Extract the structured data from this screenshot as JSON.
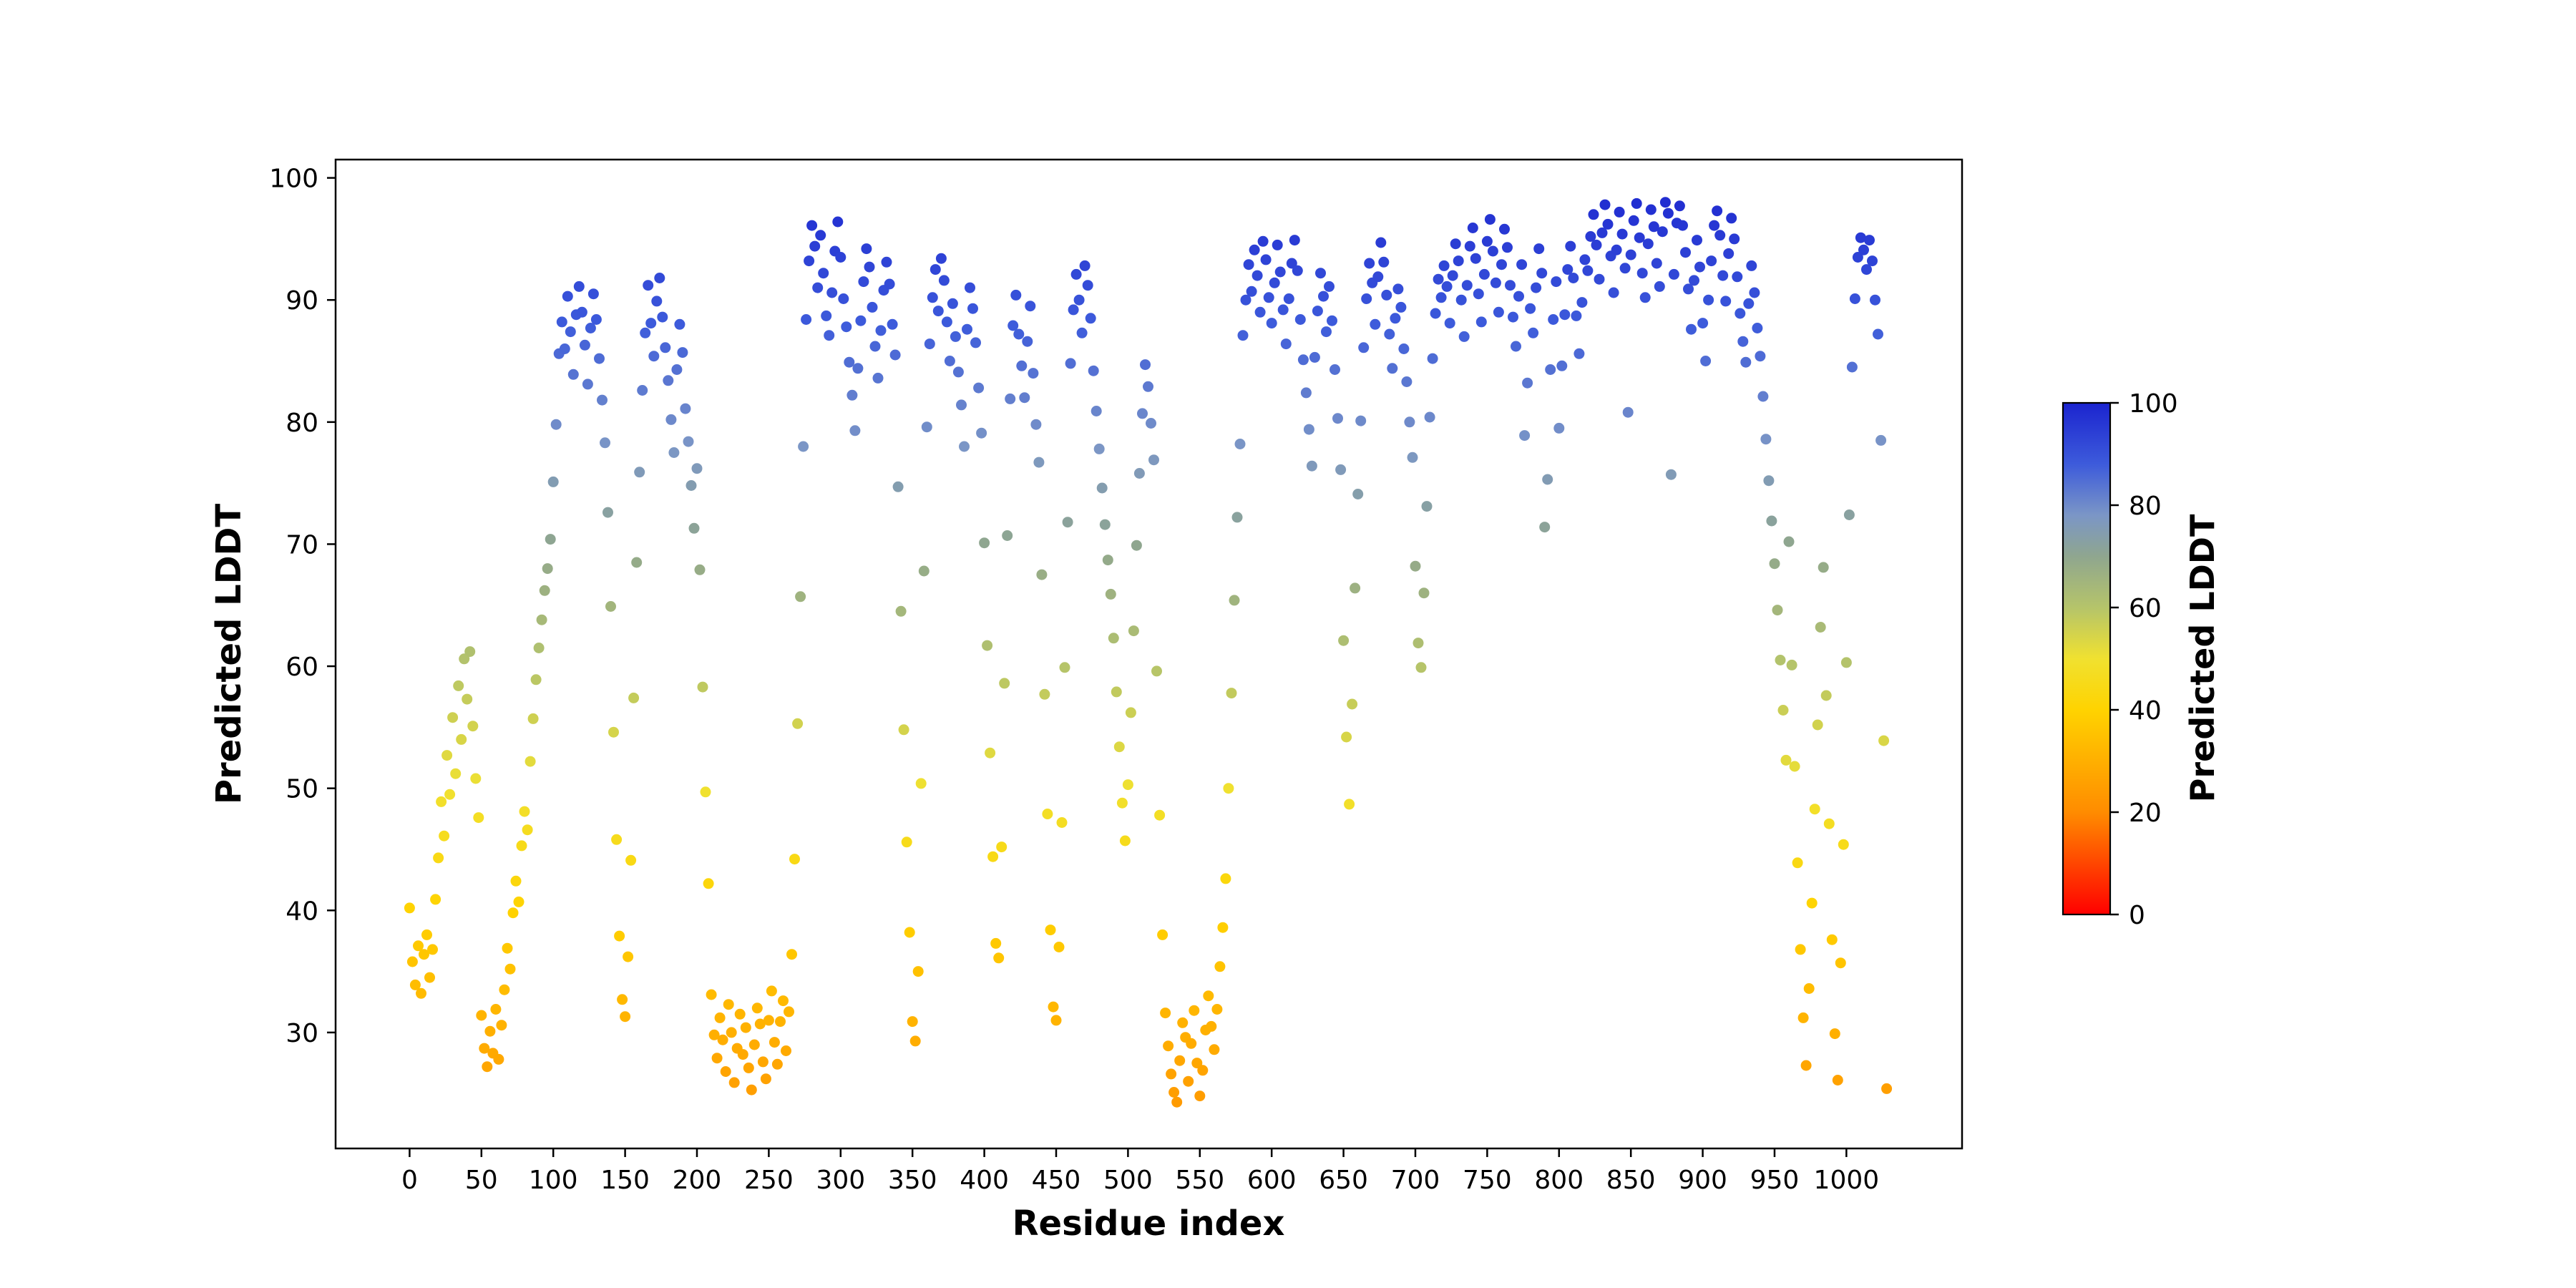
{
  "chart_data": {
    "type": "scatter",
    "title": "",
    "xlabel": "Residue index",
    "ylabel": "Predicted LDDT",
    "xlim": [
      -51.5,
      1080.5
    ],
    "ylim": [
      20.5,
      101.5
    ],
    "xticks": [
      0,
      50,
      100,
      150,
      200,
      250,
      300,
      350,
      400,
      450,
      500,
      550,
      600,
      650,
      700,
      750,
      800,
      850,
      900,
      950,
      1000
    ],
    "yticks": [
      30,
      40,
      50,
      60,
      70,
      80,
      90,
      100
    ],
    "grid": false,
    "marker_radius_px": 7.5,
    "x_start": 0,
    "x_step": 2,
    "colorbar": {
      "label": "Predicted LDDT",
      "ticks": [
        0,
        20,
        40,
        60,
        80,
        100
      ],
      "min": 0,
      "max": 100
    },
    "colormap_stops": [
      [
        0,
        "#ff0000"
      ],
      [
        20,
        "#ff8c00"
      ],
      [
        40,
        "#ffd300"
      ],
      [
        50,
        "#f0e130"
      ],
      [
        60,
        "#b5c46a"
      ],
      [
        70,
        "#8fa68f"
      ],
      [
        78,
        "#7b96c6"
      ],
      [
        88,
        "#3d5bdb"
      ],
      [
        100,
        "#1b24cf"
      ]
    ],
    "values": [
      40.2,
      35.8,
      33.9,
      37.1,
      33.2,
      36.4,
      38.0,
      34.5,
      36.8,
      40.9,
      44.3,
      48.9,
      46.1,
      52.7,
      49.5,
      55.8,
      51.2,
      58.4,
      54.0,
      60.6,
      57.3,
      61.2,
      55.1,
      50.8,
      47.6,
      31.4,
      28.7,
      27.2,
      30.1,
      28.3,
      31.9,
      27.8,
      30.6,
      33.5,
      36.9,
      35.2,
      39.8,
      42.4,
      40.7,
      45.3,
      48.1,
      46.6,
      52.2,
      55.7,
      58.9,
      61.5,
      63.8,
      66.2,
      68.0,
      70.4,
      75.1,
      79.8,
      85.6,
      88.2,
      86.0,
      90.3,
      87.4,
      83.9,
      88.8,
      91.1,
      89.0,
      86.3,
      83.1,
      87.7,
      90.5,
      88.4,
      85.2,
      81.8,
      78.3,
      72.6,
      64.9,
      54.6,
      45.8,
      37.9,
      32.7,
      31.3,
      36.2,
      44.1,
      57.4,
      68.5,
      75.9,
      82.6,
      87.3,
      91.2,
      88.1,
      85.4,
      89.9,
      91.8,
      88.6,
      86.1,
      83.4,
      80.2,
      77.5,
      84.3,
      88.0,
      85.7,
      81.1,
      78.4,
      74.8,
      71.3,
      76.2,
      67.9,
      58.3,
      49.7,
      42.2,
      33.1,
      29.8,
      27.9,
      31.2,
      29.4,
      26.8,
      32.3,
      30.0,
      25.9,
      28.7,
      31.5,
      28.2,
      30.4,
      27.1,
      25.3,
      29.0,
      32.0,
      30.7,
      27.6,
      26.2,
      31.0,
      33.4,
      29.2,
      27.4,
      30.9,
      32.6,
      28.5,
      31.7,
      36.4,
      44.2,
      55.3,
      65.7,
      78.0,
      88.4,
      93.2,
      96.1,
      94.4,
      91.0,
      95.3,
      92.2,
      88.7,
      87.1,
      90.6,
      94.0,
      96.4,
      93.5,
      90.1,
      87.8,
      84.9,
      82.2,
      79.3,
      84.4,
      88.3,
      91.5,
      94.2,
      92.7,
      89.4,
      86.2,
      83.6,
      87.5,
      90.8,
      93.1,
      91.3,
      88.0,
      85.5,
      74.7,
      64.5,
      54.8,
      45.6,
      38.2,
      30.9,
      29.3,
      35.0,
      50.4,
      67.8,
      79.6,
      86.4,
      90.2,
      92.5,
      89.1,
      93.4,
      91.6,
      88.2,
      85.0,
      89.7,
      87.0,
      84.1,
      81.4,
      78.0,
      87.6,
      91.0,
      89.3,
      86.5,
      82.8,
      79.1,
      70.1,
      61.7,
      52.9,
      44.4,
      37.3,
      36.1,
      45.2,
      58.6,
      70.7,
      81.9,
      87.9,
      90.4,
      87.2,
      84.6,
      82.0,
      86.6,
      89.5,
      84.0,
      79.8,
      76.7,
      67.5,
      57.7,
      47.9,
      38.4,
      32.1,
      31.0,
      37.0,
      47.2,
      59.9,
      71.8,
      84.8,
      89.2,
      92.1,
      90.0,
      87.3,
      92.8,
      91.2,
      88.5,
      84.2,
      80.9,
      77.8,
      74.6,
      71.6,
      68.7,
      65.9,
      62.3,
      57.9,
      53.4,
      48.8,
      45.7,
      50.3,
      56.2,
      62.9,
      69.9,
      75.8,
      80.7,
      84.7,
      82.9,
      79.9,
      76.9,
      59.6,
      47.8,
      38.0,
      31.6,
      28.9,
      26.6,
      25.1,
      24.3,
      27.7,
      30.8,
      29.6,
      26.0,
      29.1,
      31.8,
      27.5,
      24.8,
      26.9,
      30.2,
      33.0,
      30.5,
      28.6,
      31.9,
      35.4,
      38.6,
      42.6,
      50.0,
      57.8,
      65.4,
      72.2,
      78.2,
      87.1,
      90.0,
      92.9,
      90.7,
      94.1,
      92.0,
      89.0,
      94.8,
      93.3,
      90.2,
      88.1,
      91.4,
      94.5,
      92.3,
      89.2,
      86.4,
      90.1,
      93.0,
      94.9,
      92.4,
      88.4,
      85.1,
      82.4,
      79.4,
      76.4,
      85.3,
      89.1,
      92.2,
      90.3,
      87.4,
      91.1,
      88.3,
      84.3,
      80.3,
      76.1,
      62.1,
      54.2,
      48.7,
      56.9,
      66.4,
      74.1,
      80.1,
      86.1,
      90.1,
      93.0,
      91.4,
      88.0,
      91.9,
      94.7,
      93.1,
      90.4,
      87.2,
      84.4,
      88.5,
      90.9,
      89.4,
      86.0,
      83.3,
      80.0,
      77.1,
      68.2,
      61.9,
      59.9,
      66.0,
      73.1,
      80.4,
      85.2,
      88.9,
      91.7,
      90.2,
      92.8,
      91.1,
      88.1,
      92.0,
      94.6,
      93.2,
      90.0,
      87.0,
      91.2,
      94.4,
      95.9,
      93.4,
      90.5,
      88.2,
      92.1,
      94.8,
      96.6,
      94.0,
      91.4,
      89.0,
      92.9,
      95.8,
      94.3,
      91.2,
      88.6,
      86.2,
      90.3,
      92.9,
      78.9,
      83.2,
      89.3,
      87.3,
      91.0,
      94.2,
      92.2,
      71.4,
      75.3,
      84.3,
      88.4,
      91.5,
      79.5,
      84.6,
      88.8,
      92.5,
      94.4,
      91.8,
      88.7,
      85.6,
      89.8,
      93.3,
      92.4,
      95.2,
      97.0,
      94.5,
      91.7,
      95.5,
      97.8,
      96.2,
      93.6,
      90.6,
      94.1,
      97.2,
      95.4,
      92.6,
      80.8,
      93.7,
      96.5,
      97.9,
      95.1,
      92.2,
      90.2,
      94.6,
      97.4,
      96.0,
      93.0,
      91.1,
      95.6,
      98.0,
      97.1,
      75.7,
      92.1,
      96.3,
      97.7,
      96.1,
      93.9,
      90.9,
      87.6,
      91.6,
      94.9,
      92.7,
      88.1,
      85.0,
      90.0,
      93.2,
      96.1,
      97.3,
      95.3,
      92.0,
      89.9,
      93.8,
      96.7,
      95.0,
      91.9,
      88.9,
      86.6,
      84.9,
      89.7,
      92.8,
      90.6,
      87.7,
      85.4,
      82.1,
      78.6,
      75.2,
      71.9,
      68.4,
      64.6,
      60.5,
      56.4,
      52.3,
      70.2,
      60.1,
      51.8,
      43.9,
      36.8,
      31.2,
      27.3,
      33.6,
      40.6,
      48.3,
      55.2,
      63.2,
      68.1,
      57.6,
      47.1,
      37.6,
      29.9,
      26.1,
      35.7,
      45.4,
      60.3,
      72.4,
      84.5,
      90.1,
      93.5,
      95.1,
      94.1,
      92.5,
      94.9,
      93.2,
      90.0,
      87.2,
      78.5,
      53.9,
      25.4
    ]
  }
}
